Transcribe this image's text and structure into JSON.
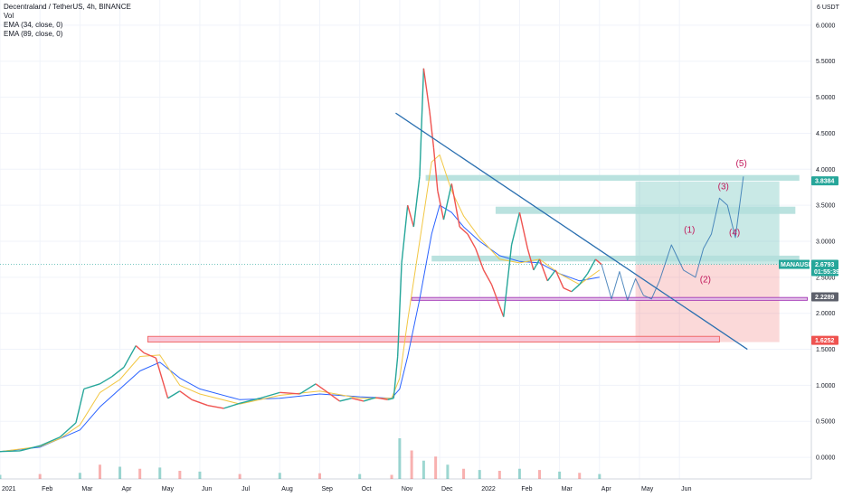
{
  "header": {
    "title": "Decentraland / TetherUS, 4h, BINANCE",
    "indicators": [
      "Vol",
      "EMA (34, close, 0)",
      "EMA (89, close, 0)"
    ]
  },
  "colors": {
    "up": "#26a69a",
    "down": "#ef5350",
    "ema_fast": "#f2c744",
    "ema_slow": "#2962ff",
    "trendline": "#2a6fb0",
    "zone": "#b2dfdb",
    "target": "#26a69a",
    "stop": "#ef5350",
    "wave": "#c2185b"
  },
  "chart_data": {
    "type": "line",
    "currency_label": "6 USDT",
    "ylim": [
      -0.3,
      6.35
    ],
    "y_ticks": [
      "6.0000",
      "5.5000",
      "5.0000",
      "4.5000",
      "4.0000",
      "3.5000",
      "3.0000",
      "2.5000",
      "2.0000",
      "1.5000",
      "1.0000",
      "0.5000",
      "0.0000"
    ],
    "y_tick_values": [
      6,
      5.5,
      5,
      4.5,
      4,
      3.5,
      3,
      2.5,
      2,
      1.5,
      1,
      0.5,
      0
    ],
    "x_ticks": [
      "2021",
      "Feb",
      "Mar",
      "Apr",
      "May",
      "Jun",
      "Jul",
      "Aug",
      "Sep",
      "Oct",
      "Nov",
      "Dec",
      "2022",
      "Feb",
      "Mar",
      "Apr",
      "May",
      "Jun"
    ],
    "x_tick_values": [
      0,
      1,
      2,
      3,
      4,
      5,
      6,
      7,
      8,
      9,
      10,
      11,
      12,
      13,
      14,
      15,
      16,
      17
    ],
    "xlim": [
      0,
      20.3
    ],
    "price": {
      "x": [
        0,
        0.5,
        1,
        1.5,
        1.9,
        2.1,
        2.5,
        2.8,
        3.1,
        3.4,
        3.6,
        3.9,
        4.2,
        4.5,
        4.8,
        5.2,
        5.6,
        6.0,
        6.5,
        7.0,
        7.5,
        7.9,
        8.2,
        8.5,
        8.8,
        9.1,
        9.4,
        9.7,
        9.85,
        9.95,
        10.05,
        10.2,
        10.35,
        10.5,
        10.6,
        10.75,
        10.85,
        10.95,
        11.1,
        11.3,
        11.5,
        11.7,
        11.9,
        12.1,
        12.3,
        12.6,
        12.8,
        13.0,
        13.2,
        13.35,
        13.5,
        13.7,
        13.9,
        14.1,
        14.3,
        14.5,
        14.7,
        14.9,
        15.05
      ],
      "close": [
        0.08,
        0.09,
        0.16,
        0.28,
        0.48,
        0.95,
        1.02,
        1.12,
        1.25,
        1.55,
        1.45,
        1.38,
        0.82,
        0.92,
        0.8,
        0.72,
        0.68,
        0.75,
        0.82,
        0.9,
        0.88,
        1.02,
        0.9,
        0.78,
        0.82,
        0.78,
        0.83,
        0.8,
        0.82,
        1.4,
        2.7,
        3.5,
        3.2,
        3.9,
        5.4,
        4.8,
        4.3,
        3.7,
        3.3,
        3.8,
        3.2,
        3.1,
        2.9,
        2.6,
        2.4,
        1.95,
        2.95,
        3.4,
        2.9,
        2.6,
        2.75,
        2.45,
        2.6,
        2.35,
        2.3,
        2.4,
        2.55,
        2.75,
        2.6793
      ]
    },
    "ema_fast": {
      "x": [
        0,
        1,
        1.5,
        2,
        2.5,
        3,
        3.5,
        4,
        4.5,
        5,
        6,
        7,
        8,
        9,
        9.8,
        10,
        10.2,
        10.5,
        10.8,
        11,
        11.3,
        11.6,
        12,
        12.5,
        13,
        13.5,
        14,
        14.5,
        15
      ],
      "y": [
        0.08,
        0.15,
        0.26,
        0.45,
        0.9,
        1.08,
        1.4,
        1.42,
        1.0,
        0.88,
        0.74,
        0.86,
        0.92,
        0.82,
        0.82,
        1.1,
        1.9,
        3.0,
        4.1,
        4.2,
        3.7,
        3.35,
        3.05,
        2.75,
        2.7,
        2.75,
        2.55,
        2.4,
        2.6
      ]
    },
    "ema_slow": {
      "x": [
        0,
        1,
        2,
        2.5,
        3,
        3.5,
        4,
        4.5,
        5,
        6,
        7,
        8,
        9,
        9.8,
        10,
        10.2,
        10.5,
        10.8,
        11,
        11.3,
        11.6,
        12,
        12.5,
        13,
        13.5,
        14,
        14.5,
        15
      ],
      "y": [
        0.08,
        0.14,
        0.38,
        0.7,
        0.95,
        1.2,
        1.32,
        1.1,
        0.95,
        0.8,
        0.82,
        0.88,
        0.84,
        0.82,
        0.95,
        1.4,
        2.2,
        3.1,
        3.5,
        3.4,
        3.2,
        3.0,
        2.8,
        2.72,
        2.7,
        2.55,
        2.45,
        2.5
      ]
    },
    "projection": {
      "x": [
        15.05,
        15.3,
        15.5,
        15.7,
        15.9,
        16.1,
        16.3,
        16.5,
        16.8,
        17.1,
        17.4,
        17.6,
        17.8,
        18.0,
        18.2,
        18.4,
        18.6
      ],
      "y": [
        2.68,
        2.2,
        2.58,
        2.18,
        2.48,
        2.25,
        2.2,
        2.45,
        2.95,
        2.6,
        2.5,
        2.9,
        3.1,
        3.6,
        3.5,
        3.05,
        3.9
      ]
    },
    "wave_labels": [
      {
        "text": "(1)",
        "x": 17.25,
        "y": 3.12
      },
      {
        "text": "(2)",
        "x": 17.65,
        "y": 2.43
      },
      {
        "text": "(3)",
        "x": 18.1,
        "y": 3.72
      },
      {
        "text": "(4)",
        "x": 18.38,
        "y": 3.08
      },
      {
        "text": "(5)",
        "x": 18.55,
        "y": 4.04
      }
    ],
    "zones": [
      {
        "x0": 10.65,
        "x1": 20.0,
        "y0": 3.84,
        "y1": 3.92
      },
      {
        "x0": 12.4,
        "x1": 19.9,
        "y0": 3.38,
        "y1": 3.48
      },
      {
        "x0": 10.8,
        "x1": 20.0,
        "y0": 2.72,
        "y1": 2.8
      }
    ],
    "support_line": {
      "x0": 10.3,
      "x1": 20.2,
      "y0": 2.18,
      "y1": 2.22
    },
    "red_band": {
      "x0": 3.7,
      "x1": 18.0,
      "y0": 1.6,
      "y1": 1.68
    },
    "trendline": {
      "x0": 9.9,
      "y0": 4.78,
      "x1": 18.7,
      "y1": 1.5
    },
    "target_box": {
      "x0": 15.9,
      "x1": 19.5,
      "y0": 2.68,
      "y1": 3.83
    },
    "stop_box": {
      "x0": 15.9,
      "x1": 19.5,
      "y0": 1.6,
      "y1": 2.68
    },
    "price_line": 2.6793,
    "badges": [
      {
        "text": "3.8384",
        "value": 3.8384,
        "color": "#26a69a",
        "label": ""
      },
      {
        "text": "2.6793",
        "value": 2.6793,
        "color": "#26a69a",
        "label": "MANAUSDT",
        "sub": "01:55:39"
      },
      {
        "text": "2.2289",
        "value": 2.2289,
        "color": "#5d606b",
        "label": ""
      },
      {
        "text": "1.6252",
        "value": 1.6252,
        "color": "#ef5350",
        "label": ""
      }
    ],
    "volume_x": [
      0,
      1,
      2,
      2.5,
      3,
      3.5,
      4,
      4.5,
      5,
      6,
      7,
      8,
      9,
      9.8,
      10,
      10.3,
      10.6,
      10.9,
      11.2,
      11.6,
      12,
      12.5,
      13,
      13.5,
      14,
      14.5,
      15
    ],
    "volume": [
      0.1,
      0.12,
      0.15,
      0.35,
      0.3,
      0.25,
      0.28,
      0.2,
      0.18,
      0.12,
      0.15,
      0.14,
      0.12,
      0.1,
      1.0,
      0.7,
      0.45,
      0.55,
      0.35,
      0.25,
      0.22,
      0.2,
      0.25,
      0.22,
      0.18,
      0.15,
      0.12
    ]
  }
}
